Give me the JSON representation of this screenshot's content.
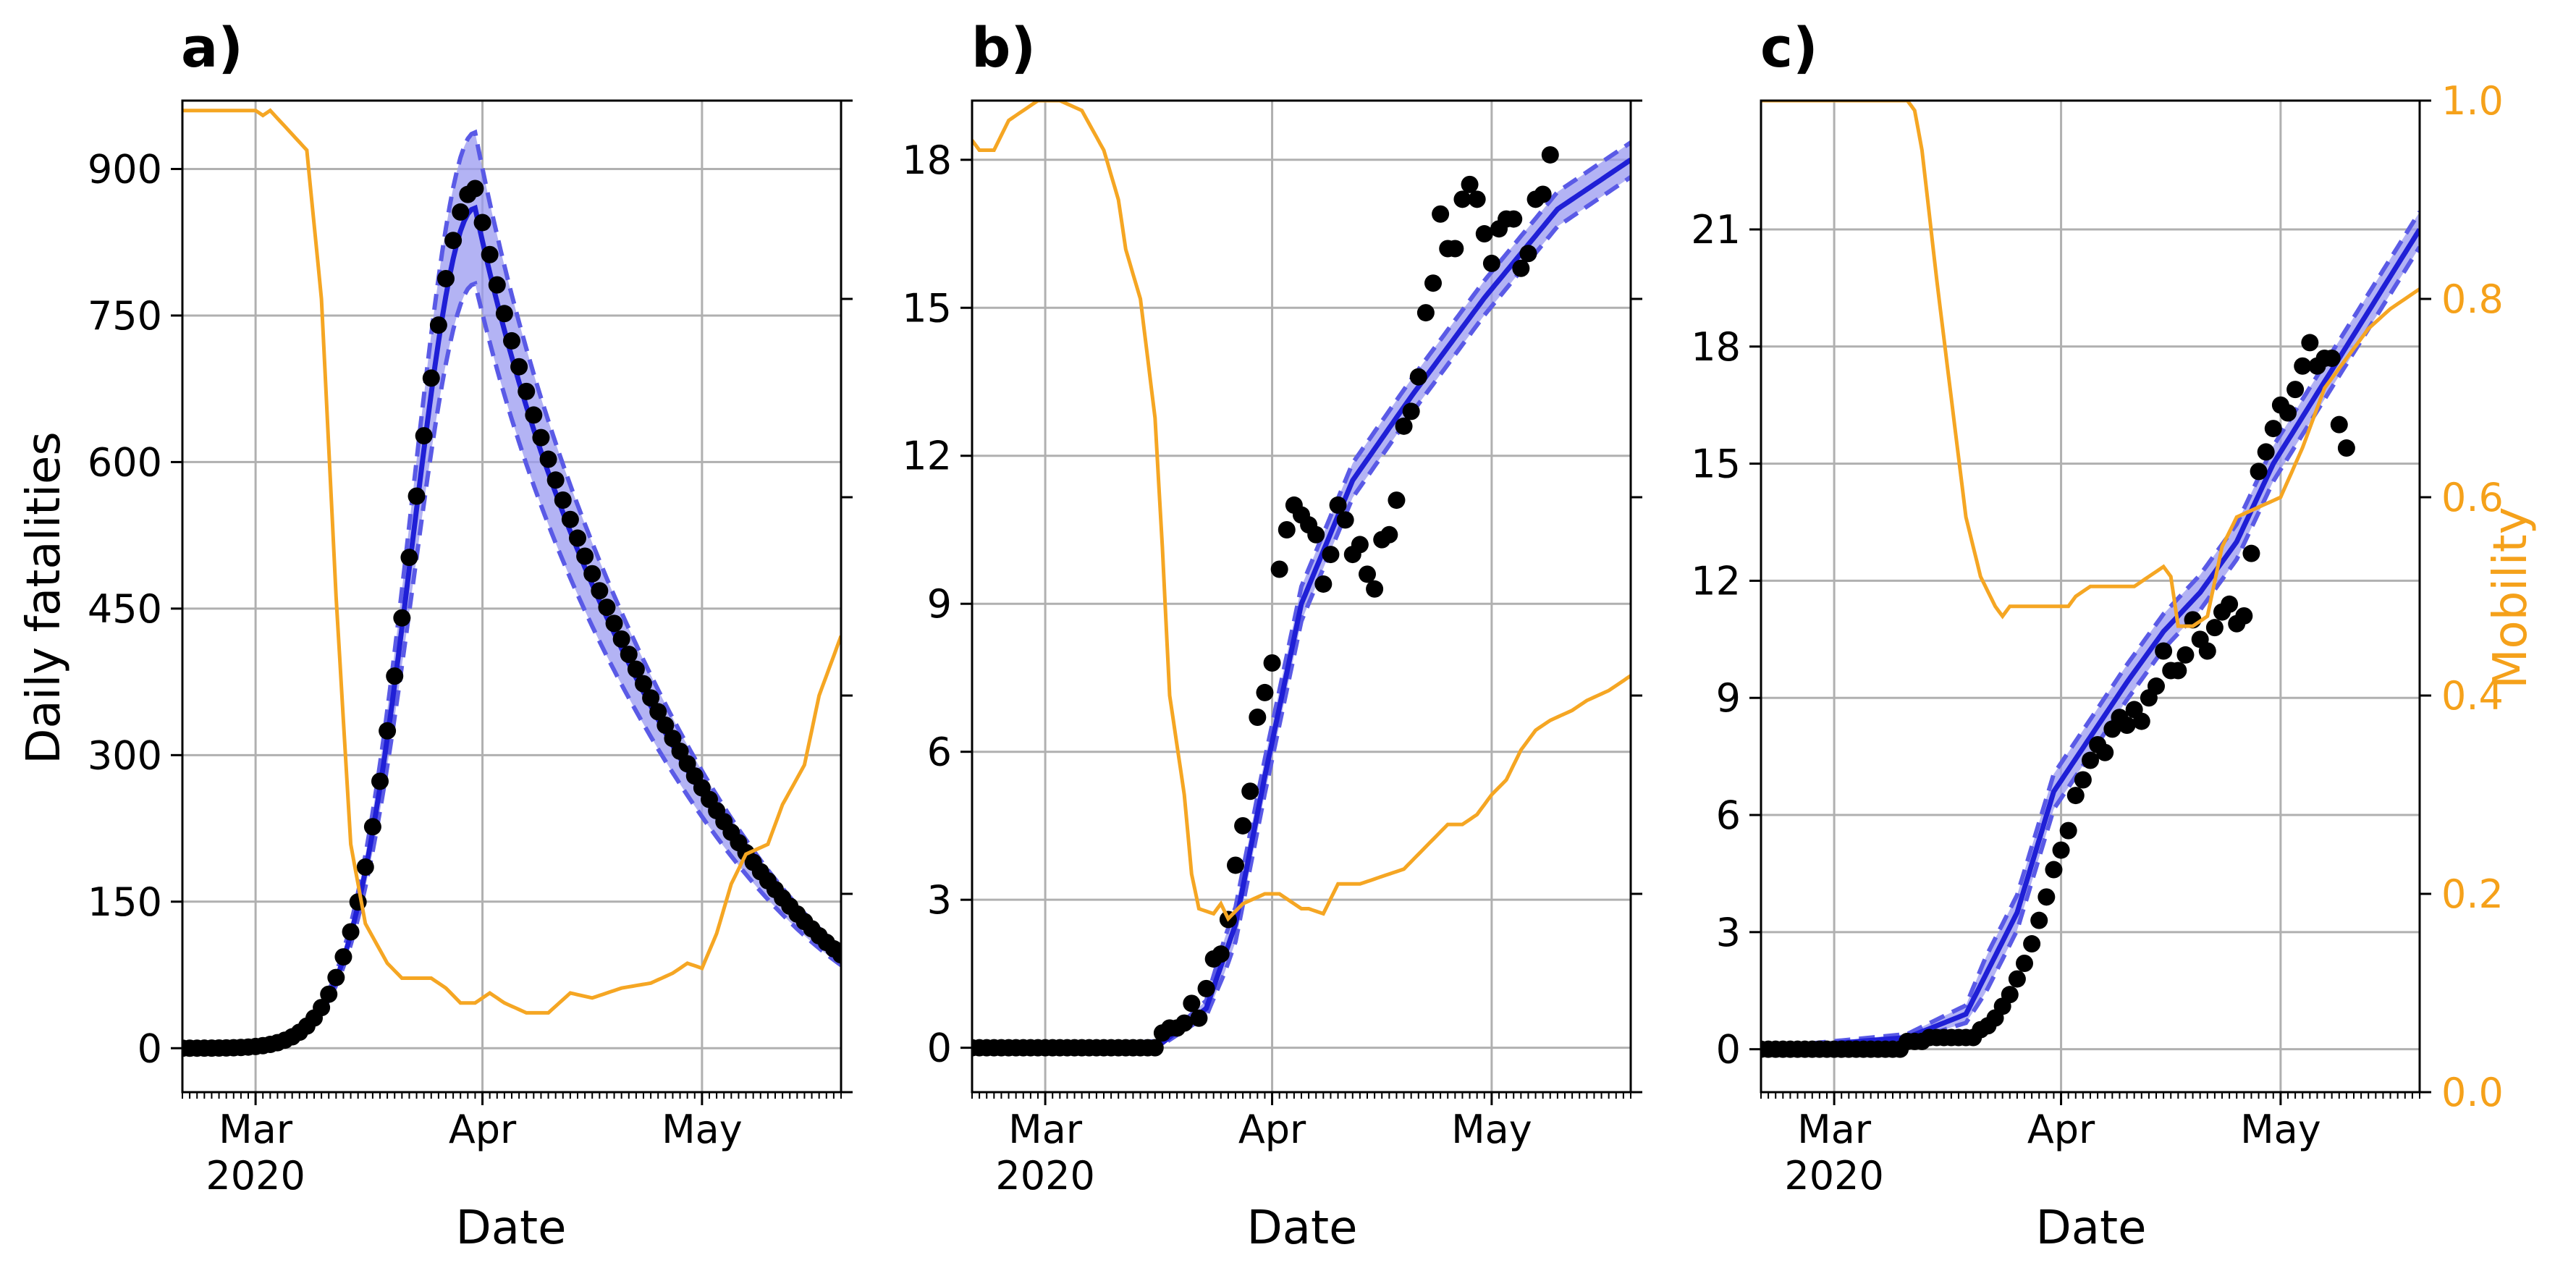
{
  "colors": {
    "fit": "#1f1fd6",
    "band_fill": "#9a9af0",
    "band_edge": "#5a5ae6",
    "points": "#000000",
    "mobility": "#f5a623",
    "grid": "#b0b0b0"
  },
  "shared": {
    "xlabel": "Date",
    "x_ticks": [
      "Mar",
      "Apr",
      "May"
    ],
    "x_year": "2020",
    "mobility_label": "Mobility",
    "mobility_ticks": [
      "0.0",
      "0.2",
      "0.4",
      "0.6",
      "0.8",
      "1.0"
    ]
  },
  "chart_data": [
    {
      "type": "line",
      "panel": "a)",
      "ylabel": "Daily fatalities",
      "xlim": [
        "2020-02-20",
        "2020-05-20"
      ],
      "ylim": [
        -45,
        970
      ],
      "yticks": [
        0,
        150,
        300,
        450,
        600,
        750,
        900
      ],
      "ytick_labels": [
        "0",
        "150",
        "300",
        "450",
        "600",
        "750",
        "900"
      ],
      "mobility_ylim": [
        0,
        1
      ],
      "grid": true,
      "fit_peak": {
        "date": "2020-03-31",
        "value": 860,
        "width_days": 8.5,
        "decay_days": 13.5,
        "band_rel": 0.07
      },
      "observed": {
        "start": "2020-02-20",
        "end": "2020-05-20",
        "step_days": 1,
        "peak_value": 880
      },
      "mobility": [
        [
          0,
          0.99
        ],
        [
          10,
          0.99
        ],
        [
          11,
          0.985
        ],
        [
          12,
          0.99
        ],
        [
          17,
          0.95
        ],
        [
          19,
          0.8
        ],
        [
          21,
          0.5
        ],
        [
          23,
          0.25
        ],
        [
          25,
          0.17
        ],
        [
          28,
          0.13
        ],
        [
          30,
          0.115
        ],
        [
          34,
          0.115
        ],
        [
          36,
          0.105
        ],
        [
          38,
          0.09
        ],
        [
          40,
          0.09
        ],
        [
          42,
          0.1
        ],
        [
          44,
          0.09
        ],
        [
          47,
          0.08
        ],
        [
          50,
          0.08
        ],
        [
          53,
          0.1
        ],
        [
          56,
          0.095
        ],
        [
          60,
          0.105
        ],
        [
          64,
          0.11
        ],
        [
          67,
          0.12
        ],
        [
          69,
          0.13
        ],
        [
          71,
          0.125
        ],
        [
          73,
          0.16
        ],
        [
          75,
          0.21
        ],
        [
          77,
          0.24
        ],
        [
          80,
          0.25
        ],
        [
          82,
          0.29
        ],
        [
          85,
          0.33
        ],
        [
          87,
          0.4
        ],
        [
          90,
          0.46
        ]
      ]
    },
    {
      "type": "line",
      "panel": "b)",
      "xlim": [
        "2020-02-20",
        "2020-05-20"
      ],
      "ylim": [
        -0.9,
        19.2
      ],
      "yticks": [
        0,
        3,
        6,
        9,
        12,
        15,
        18
      ],
      "ytick_labels": [
        "0",
        "3",
        "6",
        "9",
        "12",
        "15",
        "18"
      ],
      "mobility_ylim": [
        0,
        1
      ],
      "grid": true,
      "fit": [
        [
          0,
          0
        ],
        [
          26,
          0.1
        ],
        [
          32,
          0.8
        ],
        [
          36,
          2.5
        ],
        [
          40,
          5.5
        ],
        [
          45,
          9
        ],
        [
          52,
          11.5
        ],
        [
          60,
          13.2
        ],
        [
          70,
          15.2
        ],
        [
          80,
          17
        ],
        [
          90,
          18
        ]
      ],
      "band_halfwidth": 0.35,
      "observed": [
        [
          0,
          0
        ],
        [
          1,
          0
        ],
        [
          2,
          0
        ],
        [
          3,
          0
        ],
        [
          4,
          0
        ],
        [
          5,
          0
        ],
        [
          6,
          0
        ],
        [
          7,
          0
        ],
        [
          8,
          0
        ],
        [
          9,
          0
        ],
        [
          10,
          0
        ],
        [
          11,
          0
        ],
        [
          12,
          0
        ],
        [
          13,
          0
        ],
        [
          14,
          0
        ],
        [
          15,
          0
        ],
        [
          16,
          0
        ],
        [
          17,
          0
        ],
        [
          18,
          0
        ],
        [
          19,
          0
        ],
        [
          20,
          0
        ],
        [
          21,
          0
        ],
        [
          22,
          0
        ],
        [
          23,
          0
        ],
        [
          24,
          0
        ],
        [
          25,
          0
        ],
        [
          26,
          0.3
        ],
        [
          27,
          0.4
        ],
        [
          28,
          0.4
        ],
        [
          29,
          0.5
        ],
        [
          30,
          0.9
        ],
        [
          31,
          0.6
        ],
        [
          32,
          1.2
        ],
        [
          33,
          1.8
        ],
        [
          34,
          1.9
        ],
        [
          35,
          2.6
        ],
        [
          36,
          3.7
        ],
        [
          37,
          4.5
        ],
        [
          38,
          5.2
        ],
        [
          39,
          6.7
        ],
        [
          40,
          7.2
        ],
        [
          41,
          7.8
        ],
        [
          42,
          9.7
        ],
        [
          43,
          10.5
        ],
        [
          44,
          11
        ],
        [
          45,
          10.8
        ],
        [
          46,
          10.6
        ],
        [
          47,
          10.4
        ],
        [
          48,
          9.4
        ],
        [
          49,
          10
        ],
        [
          50,
          11
        ],
        [
          51,
          10.7
        ],
        [
          52,
          10
        ],
        [
          53,
          10.2
        ],
        [
          54,
          9.6
        ],
        [
          55,
          9.3
        ],
        [
          56,
          10.3
        ],
        [
          57,
          10.4
        ],
        [
          58,
          11.1
        ],
        [
          59,
          12.6
        ],
        [
          60,
          12.9
        ],
        [
          61,
          13.6
        ],
        [
          62,
          14.9
        ],
        [
          63,
          15.5
        ],
        [
          64,
          16.9
        ],
        [
          65,
          16.2
        ],
        [
          66,
          16.2
        ],
        [
          67,
          17.2
        ],
        [
          68,
          17.5
        ],
        [
          69,
          17.2
        ],
        [
          70,
          16.5
        ],
        [
          71,
          15.9
        ],
        [
          72,
          16.6
        ],
        [
          73,
          16.8
        ],
        [
          74,
          16.8
        ],
        [
          75,
          15.8
        ],
        [
          76,
          16.1
        ],
        [
          77,
          17.2
        ],
        [
          78,
          17.3
        ],
        [
          79,
          18.1
        ]
      ],
      "mobility": [
        [
          0,
          0.96
        ],
        [
          1,
          0.95
        ],
        [
          3,
          0.95
        ],
        [
          5,
          0.98
        ],
        [
          7,
          0.99
        ],
        [
          9,
          1
        ],
        [
          12,
          1
        ],
        [
          15,
          0.99
        ],
        [
          18,
          0.95
        ],
        [
          20,
          0.9
        ],
        [
          21,
          0.85
        ],
        [
          23,
          0.8
        ],
        [
          25,
          0.68
        ],
        [
          26,
          0.55
        ],
        [
          27,
          0.4
        ],
        [
          29,
          0.3
        ],
        [
          30,
          0.22
        ],
        [
          31,
          0.185
        ],
        [
          33,
          0.18
        ],
        [
          34,
          0.19
        ],
        [
          35,
          0.175
        ],
        [
          37,
          0.19
        ],
        [
          40,
          0.2
        ],
        [
          42,
          0.2
        ],
        [
          43,
          0.195
        ],
        [
          44,
          0.19
        ],
        [
          45,
          0.185
        ],
        [
          46,
          0.185
        ],
        [
          48,
          0.18
        ],
        [
          50,
          0.21
        ],
        [
          53,
          0.21
        ],
        [
          57,
          0.22
        ],
        [
          59,
          0.225
        ],
        [
          61,
          0.24
        ],
        [
          63,
          0.255
        ],
        [
          65,
          0.27
        ],
        [
          67,
          0.27
        ],
        [
          69,
          0.28
        ],
        [
          71,
          0.3
        ],
        [
          73,
          0.315
        ],
        [
          75,
          0.345
        ],
        [
          77,
          0.365
        ],
        [
          79,
          0.375
        ],
        [
          82,
          0.385
        ],
        [
          84,
          0.395
        ],
        [
          87,
          0.405
        ],
        [
          90,
          0.42
        ]
      ]
    },
    {
      "type": "line",
      "panel": "c)",
      "xlim": [
        "2020-02-20",
        "2020-05-20"
      ],
      "ylim": [
        -1.1,
        24.3
      ],
      "yticks": [
        0,
        3,
        6,
        9,
        12,
        15,
        18,
        21
      ],
      "ytick_labels": [
        "0",
        "3",
        "6",
        "9",
        "12",
        "15",
        "18",
        "21"
      ],
      "mobility_ylim": [
        0,
        1
      ],
      "grid": true,
      "fit": [
        [
          0,
          0
        ],
        [
          20,
          0.3
        ],
        [
          28,
          0.9
        ],
        [
          35,
          3.5
        ],
        [
          40,
          6.6
        ],
        [
          45,
          8
        ],
        [
          50,
          9.4
        ],
        [
          55,
          10.7
        ],
        [
          60,
          11.7
        ],
        [
          65,
          13
        ],
        [
          70,
          15
        ],
        [
          75,
          16.5
        ],
        [
          80,
          18
        ],
        [
          85,
          19.5
        ],
        [
          90,
          21
        ]
      ],
      "band_halfwidth": 0.45,
      "observed": [
        [
          0,
          0
        ],
        [
          1,
          0
        ],
        [
          2,
          0
        ],
        [
          3,
          0
        ],
        [
          4,
          0
        ],
        [
          5,
          0
        ],
        [
          6,
          0
        ],
        [
          7,
          0
        ],
        [
          8,
          0
        ],
        [
          9,
          0
        ],
        [
          10,
          0
        ],
        [
          11,
          0
        ],
        [
          12,
          0
        ],
        [
          13,
          0
        ],
        [
          14,
          0
        ],
        [
          15,
          0
        ],
        [
          16,
          0
        ],
        [
          17,
          0
        ],
        [
          18,
          0
        ],
        [
          19,
          0
        ],
        [
          20,
          0.2
        ],
        [
          21,
          0.2
        ],
        [
          22,
          0.2
        ],
        [
          23,
          0.3
        ],
        [
          24,
          0.3
        ],
        [
          25,
          0.3
        ],
        [
          26,
          0.3
        ],
        [
          27,
          0.3
        ],
        [
          28,
          0.3
        ],
        [
          29,
          0.3
        ],
        [
          30,
          0.5
        ],
        [
          31,
          0.6
        ],
        [
          32,
          0.8
        ],
        [
          33,
          1.1
        ],
        [
          34,
          1.4
        ],
        [
          35,
          1.8
        ],
        [
          36,
          2.2
        ],
        [
          37,
          2.7
        ],
        [
          38,
          3.3
        ],
        [
          39,
          3.9
        ],
        [
          40,
          4.6
        ],
        [
          41,
          5.1
        ],
        [
          42,
          5.6
        ],
        [
          43,
          6.5
        ],
        [
          44,
          6.9
        ],
        [
          45,
          7.4
        ],
        [
          46,
          7.8
        ],
        [
          47,
          7.6
        ],
        [
          48,
          8.2
        ],
        [
          49,
          8.5
        ],
        [
          50,
          8.3
        ],
        [
          51,
          8.7
        ],
        [
          52,
          8.4
        ],
        [
          53,
          9
        ],
        [
          54,
          9.3
        ],
        [
          55,
          10.2
        ],
        [
          56,
          9.7
        ],
        [
          57,
          9.7
        ],
        [
          58,
          10.1
        ],
        [
          59,
          11
        ],
        [
          60,
          10.5
        ],
        [
          61,
          10.2
        ],
        [
          62,
          10.8
        ],
        [
          63,
          11.2
        ],
        [
          64,
          11.4
        ],
        [
          65,
          10.9
        ],
        [
          66,
          11.1
        ],
        [
          67,
          12.7
        ],
        [
          68,
          14.8
        ],
        [
          69,
          15.3
        ],
        [
          70,
          15.9
        ],
        [
          71,
          16.5
        ],
        [
          72,
          16.3
        ],
        [
          73,
          16.9
        ],
        [
          74,
          17.5
        ],
        [
          75,
          18.1
        ],
        [
          76,
          17.5
        ],
        [
          77,
          17.7
        ],
        [
          78,
          17.7
        ],
        [
          79,
          16
        ],
        [
          80,
          15.4
        ]
      ],
      "mobility": [
        [
          0,
          1
        ],
        [
          20,
          1
        ],
        [
          21,
          0.99
        ],
        [
          22,
          0.95
        ],
        [
          24,
          0.82
        ],
        [
          26,
          0.7
        ],
        [
          28,
          0.58
        ],
        [
          30,
          0.52
        ],
        [
          32,
          0.49
        ],
        [
          33,
          0.48
        ],
        [
          34,
          0.49
        ],
        [
          36,
          0.49
        ],
        [
          40,
          0.49
        ],
        [
          42,
          0.49
        ],
        [
          43,
          0.5
        ],
        [
          45,
          0.51
        ],
        [
          48,
          0.51
        ],
        [
          51,
          0.51
        ],
        [
          53,
          0.52
        ],
        [
          55,
          0.53
        ],
        [
          56,
          0.52
        ],
        [
          57,
          0.47
        ],
        [
          59,
          0.47
        ],
        [
          61,
          0.48
        ],
        [
          63,
          0.55
        ],
        [
          65,
          0.58
        ],
        [
          68,
          0.59
        ],
        [
          71,
          0.6
        ],
        [
          74,
          0.65
        ],
        [
          77,
          0.71
        ],
        [
          80,
          0.74
        ],
        [
          83,
          0.77
        ],
        [
          86,
          0.79
        ],
        [
          88,
          0.8
        ],
        [
          90,
          0.81
        ]
      ]
    }
  ]
}
